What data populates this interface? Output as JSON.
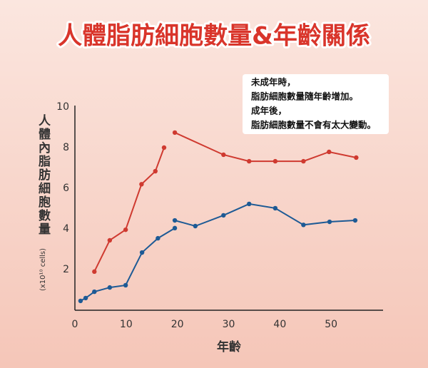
{
  "chart_data": {
    "type": "line",
    "title": "人體脂肪細胞數量&年齡關係",
    "y_label": "人體內脂肪細胞數量",
    "y_unit": "(x10¹⁰ cells)",
    "x_label": "年齡",
    "note": [
      "未成年時，",
      "脂肪細胞數量隨年齡增加。",
      "成年後，",
      "脂肪細胞數量不會有太大變動。"
    ],
    "xlim": [
      0,
      60
    ],
    "ylim": [
      0,
      10
    ],
    "xticks": [
      0,
      10,
      20,
      30,
      40,
      50
    ],
    "yticks": [
      2,
      4,
      6,
      8,
      10
    ],
    "series": [
      {
        "color": "#cf3a30",
        "x": [
          3.8,
          6.8,
          9.9,
          13,
          15.7,
          17.4,
          null,
          19.5,
          29,
          34,
          39.1,
          44.6,
          49.6,
          54.9
        ],
        "values": [
          1.9,
          3.44,
          3.96,
          6.2,
          6.84,
          8.0,
          null,
          8.74,
          7.65,
          7.33,
          7.33,
          7.33,
          7.79,
          7.51
        ]
      },
      {
        "color": "#1d5a95",
        "x": [
          1.1,
          2.1,
          3.8,
          6.8,
          9.9,
          13.1,
          16.2,
          19.5,
          null,
          19.5,
          23.5,
          29,
          34,
          39.1,
          44.6,
          49.7,
          54.7
        ],
        "values": [
          0.46,
          0.6,
          0.91,
          1.12,
          1.23,
          2.84,
          3.54,
          4.04,
          null,
          4.42,
          4.14,
          4.67,
          5.23,
          5.02,
          4.2,
          4.35,
          4.42
        ]
      }
    ]
  }
}
